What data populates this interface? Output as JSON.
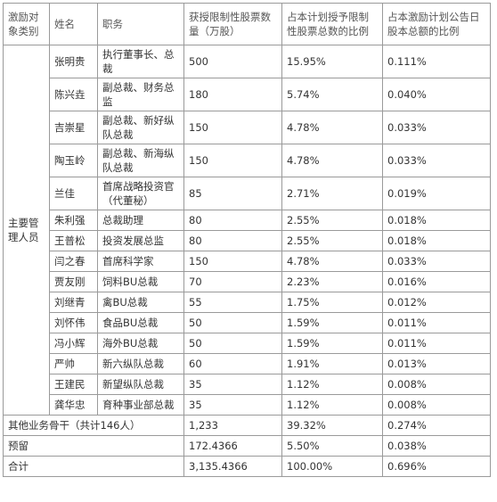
{
  "headers": {
    "category": "激励对象类别",
    "name": "姓名",
    "position": "职务",
    "shares": "获授限制性股票数量（万股）",
    "pct_plan": "占本计划授予限制性股票总数的比例",
    "pct_capital": "占本激励计划公告日股本总额的比例"
  },
  "category_main": "主要管理人员",
  "rows": [
    {
      "name": "张明贵",
      "position": "执行董事长、总裁",
      "shares": "500",
      "pct_plan": "15.95%",
      "pct_capital": "0.111%"
    },
    {
      "name": "陈兴垚",
      "position": "副总裁、财务总监",
      "shares": "180",
      "pct_plan": "5.74%",
      "pct_capital": "0.040%"
    },
    {
      "name": "吉崇星",
      "position": "副总裁、新好纵队总裁",
      "shares": "150",
      "pct_plan": "4.78%",
      "pct_capital": "0.033%"
    },
    {
      "name": "陶玉岭",
      "position": "副总裁、新海纵队总裁",
      "shares": "150",
      "pct_plan": "4.78%",
      "pct_capital": "0.033%"
    },
    {
      "name": "兰佳",
      "position": "首席战略投资官（代董秘）",
      "shares": "85",
      "pct_plan": "2.71%",
      "pct_capital": "0.019%"
    },
    {
      "name": "朱利强",
      "position": "总裁助理",
      "shares": "80",
      "pct_plan": "2.55%",
      "pct_capital": "0.018%"
    },
    {
      "name": "王普松",
      "position": "投资发展总监",
      "shares": "80",
      "pct_plan": "2.55%",
      "pct_capital": "0.018%"
    },
    {
      "name": "闫之春",
      "position": "首席科学家",
      "shares": "150",
      "pct_plan": "4.78%",
      "pct_capital": "0.033%"
    },
    {
      "name": "贾友刚",
      "position": "饲料BU总裁",
      "shares": "70",
      "pct_plan": "2.23%",
      "pct_capital": "0.016%"
    },
    {
      "name": "刘继青",
      "position": "禽BU总裁",
      "shares": "55",
      "pct_plan": "1.75%",
      "pct_capital": "0.012%"
    },
    {
      "name": "刘怀伟",
      "position": "食品BU总裁",
      "shares": "50",
      "pct_plan": "1.59%",
      "pct_capital": "0.011%"
    },
    {
      "name": "冯小辉",
      "position": "海外BU总裁",
      "shares": "50",
      "pct_plan": "1.59%",
      "pct_capital": "0.011%"
    },
    {
      "name": "严帅",
      "position": "新六纵队总裁",
      "shares": "60",
      "pct_plan": "1.91%",
      "pct_capital": "0.013%"
    },
    {
      "name": "王建民",
      "position": "新望纵队总裁",
      "shares": "35",
      "pct_plan": "1.12%",
      "pct_capital": "0.008%"
    },
    {
      "name": "龚华忠",
      "position": "育种事业部总裁",
      "shares": "35",
      "pct_plan": "1.12%",
      "pct_capital": "0.008%"
    }
  ],
  "footer": [
    {
      "label": "其他业务骨干（共计146人）",
      "shares": "1,233",
      "pct_plan": "39.32%",
      "pct_capital": "0.274%"
    },
    {
      "label": "预留",
      "shares": "172.4366",
      "pct_plan": "5.50%",
      "pct_capital": "0.038%"
    },
    {
      "label": "合计",
      "shares": "3,135.4366",
      "pct_plan": "100.00%",
      "pct_capital": "0.696%"
    }
  ]
}
